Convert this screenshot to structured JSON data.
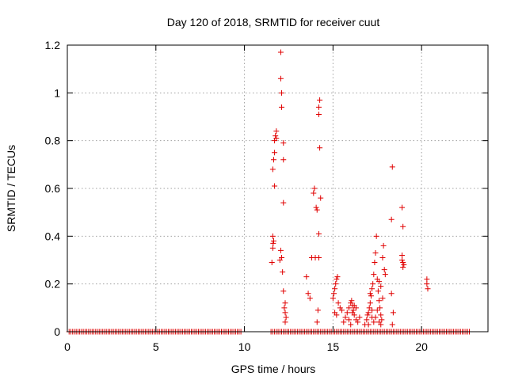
{
  "chart_data": {
    "type": "scatter",
    "title": "Day 120 of 2018, SRMTID for receiver cuut",
    "xlabel": "GPS time / hours",
    "ylabel": "SRMTID / TECUs",
    "xlim": [
      0,
      23.75
    ],
    "ylim": [
      0,
      1.2
    ],
    "xticks": [
      0,
      5,
      10,
      15,
      20
    ],
    "yticks": [
      0,
      0.2,
      0.4,
      0.6,
      0.8,
      1,
      1.2
    ],
    "xtick_labels": [
      "0",
      "5",
      "10",
      "15",
      "20"
    ],
    "ytick_labels": [
      "0",
      "0.2",
      "0.4",
      "0.6",
      "0.8",
      "1",
      "1.2"
    ],
    "grid": true,
    "marker": "+",
    "color": "#e00000",
    "series": [
      {
        "name": "SRMTID",
        "zero_baseline": {
          "x_start": 0.1,
          "x_end": 22.75,
          "step": 0.1,
          "gaps": [
            [
              9.85,
              11.4
            ]
          ]
        },
        "points": [
          [
            11.55,
            0.29
          ],
          [
            11.6,
            0.35
          ],
          [
            11.62,
            0.37
          ],
          [
            11.6,
            0.4
          ],
          [
            11.65,
            0.38
          ],
          [
            11.6,
            0.68
          ],
          [
            11.65,
            0.72
          ],
          [
            11.7,
            0.75
          ],
          [
            11.7,
            0.8
          ],
          [
            11.75,
            0.82
          ],
          [
            11.8,
            0.84
          ],
          [
            11.7,
            0.61
          ],
          [
            11.8,
            0.81
          ],
          [
            12.0,
            0.3
          ],
          [
            12.05,
            0.34
          ],
          [
            12.1,
            0.31
          ],
          [
            12.15,
            0.25
          ],
          [
            12.2,
            0.17
          ],
          [
            12.2,
            0.54
          ],
          [
            12.2,
            0.72
          ],
          [
            12.2,
            0.79
          ],
          [
            12.1,
            0.94
          ],
          [
            12.1,
            1.0
          ],
          [
            12.05,
            1.06
          ],
          [
            12.05,
            1.17
          ],
          [
            12.25,
            0.1
          ],
          [
            12.3,
            0.08
          ],
          [
            12.35,
            0.06
          ],
          [
            12.3,
            0.12
          ],
          [
            12.3,
            0.04
          ],
          [
            13.5,
            0.23
          ],
          [
            13.6,
            0.16
          ],
          [
            13.7,
            0.14
          ],
          [
            13.8,
            0.31
          ],
          [
            13.9,
            0.58
          ],
          [
            13.95,
            0.6
          ],
          [
            14.0,
            0.31
          ],
          [
            14.05,
            0.52
          ],
          [
            14.1,
            0.51
          ],
          [
            14.2,
            0.41
          ],
          [
            14.25,
            0.77
          ],
          [
            14.2,
            0.91
          ],
          [
            14.2,
            0.94
          ],
          [
            14.25,
            0.97
          ],
          [
            14.3,
            0.56
          ],
          [
            14.2,
            0.31
          ],
          [
            14.15,
            0.09
          ],
          [
            14.1,
            0.04
          ],
          [
            15.0,
            0.14
          ],
          [
            15.05,
            0.16
          ],
          [
            15.1,
            0.18
          ],
          [
            15.15,
            0.2
          ],
          [
            15.2,
            0.22
          ],
          [
            15.25,
            0.23
          ],
          [
            15.1,
            0.08
          ],
          [
            15.2,
            0.07
          ],
          [
            15.3,
            0.12
          ],
          [
            15.4,
            0.1
          ],
          [
            15.5,
            0.09
          ],
          [
            15.6,
            0.04
          ],
          [
            15.7,
            0.06
          ],
          [
            15.8,
            0.08
          ],
          [
            15.9,
            0.1
          ],
          [
            16.0,
            0.12
          ],
          [
            16.05,
            0.13
          ],
          [
            16.1,
            0.11
          ],
          [
            16.15,
            0.09
          ],
          [
            16.2,
            0.07
          ],
          [
            16.3,
            0.05
          ],
          [
            16.4,
            0.04
          ],
          [
            16.5,
            0.06
          ],
          [
            15.9,
            0.05
          ],
          [
            16.0,
            0.03
          ],
          [
            16.1,
            0.08
          ],
          [
            16.2,
            0.11
          ],
          [
            16.3,
            0.1
          ],
          [
            16.8,
            0.03
          ],
          [
            16.9,
            0.05
          ],
          [
            17.0,
            0.08
          ],
          [
            17.05,
            0.1
          ],
          [
            17.1,
            0.12
          ],
          [
            17.15,
            0.15
          ],
          [
            17.2,
            0.18
          ],
          [
            17.25,
            0.2
          ],
          [
            17.3,
            0.24
          ],
          [
            17.35,
            0.29
          ],
          [
            17.4,
            0.33
          ],
          [
            17.45,
            0.4
          ],
          [
            17.5,
            0.22
          ],
          [
            17.55,
            0.17
          ],
          [
            17.6,
            0.13
          ],
          [
            17.65,
            0.1
          ],
          [
            17.7,
            0.07
          ],
          [
            17.75,
            0.05
          ],
          [
            17.8,
            0.31
          ],
          [
            17.85,
            0.36
          ],
          [
            17.9,
            0.26
          ],
          [
            17.95,
            0.24
          ],
          [
            17.2,
            0.06
          ],
          [
            17.3,
            0.04
          ],
          [
            17.4,
            0.06
          ],
          [
            17.5,
            0.09
          ],
          [
            17.6,
            0.21
          ],
          [
            17.7,
            0.19
          ],
          [
            17.8,
            0.14
          ],
          [
            17.1,
            0.16
          ],
          [
            17.2,
            0.09
          ],
          [
            16.95,
            0.07
          ],
          [
            17.0,
            0.03
          ],
          [
            17.6,
            0.04
          ],
          [
            17.7,
            0.03
          ],
          [
            18.3,
            0.47
          ],
          [
            18.35,
            0.69
          ],
          [
            18.3,
            0.16
          ],
          [
            18.4,
            0.08
          ],
          [
            18.35,
            0.03
          ],
          [
            18.9,
            0.52
          ],
          [
            18.95,
            0.44
          ],
          [
            18.9,
            0.32
          ],
          [
            18.95,
            0.29
          ],
          [
            19.0,
            0.28
          ],
          [
            18.95,
            0.27
          ],
          [
            18.9,
            0.3
          ],
          [
            20.3,
            0.22
          ],
          [
            20.3,
            0.2
          ],
          [
            20.35,
            0.18
          ]
        ]
      }
    ]
  }
}
